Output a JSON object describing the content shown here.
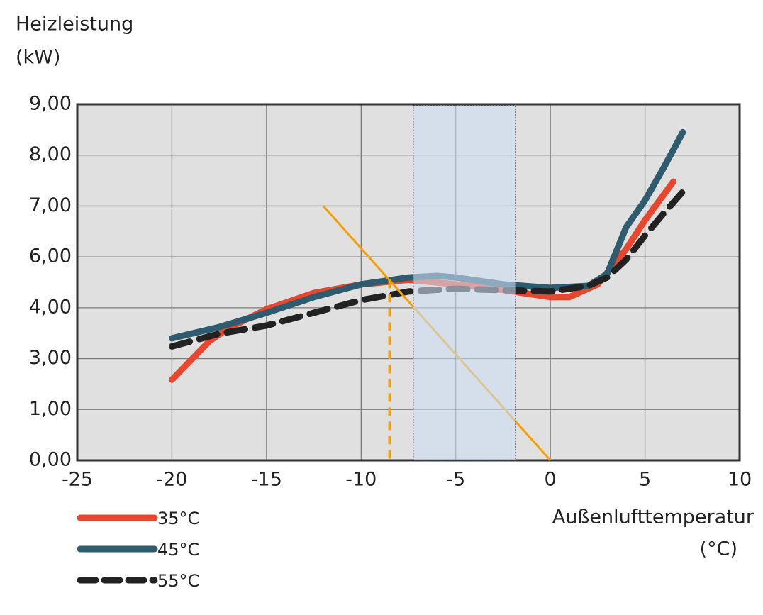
{
  "chart_data": {
    "type": "line",
    "y_label": [
      "Heizleistung",
      "(kW)"
    ],
    "x_label": [
      "Außenlufttemperatur",
      "(°C)"
    ],
    "xlim": [
      -25,
      10
    ],
    "xticks": [
      -25,
      -20,
      -15,
      -10,
      -5,
      0,
      5,
      10
    ],
    "ylim": [
      0,
      9
    ],
    "yticks": [
      {
        "value": 0,
        "label": "0,00"
      },
      {
        "value": 1,
        "label": "1,00"
      },
      {
        "value": 3,
        "label": "3,00"
      },
      {
        "value": 4,
        "label": "4,00"
      },
      {
        "value": 6,
        "label": "6,00"
      },
      {
        "value": 7,
        "label": "7,00"
      },
      {
        "value": 8,
        "label": "8,00"
      },
      {
        "value": 9,
        "label": "9,00"
      }
    ],
    "grid": true,
    "series": [
      {
        "name": "35°C",
        "color": "#e8472f",
        "dashed": false,
        "x": [
          -20,
          -18,
          -17,
          -15,
          -12.5,
          -10,
          -7.5,
          -5,
          -2.5,
          0,
          1,
          2.5,
          4,
          5,
          6.5
        ],
        "values": [
          2.17,
          3.35,
          3.6,
          3.97,
          4.58,
          4.92,
          5.1,
          4.92,
          4.7,
          4.42,
          4.42,
          4.92,
          6.15,
          6.72,
          7.48
        ]
      },
      {
        "name": "45°C",
        "color": "#2e5b6e",
        "dashed": false,
        "x": [
          -20,
          -17.5,
          -15,
          -12.5,
          -10,
          -7.5,
          -6,
          -5,
          -2.5,
          0,
          2,
          3,
          4,
          5,
          6,
          7
        ],
        "values": [
          3.4,
          3.62,
          3.9,
          4.42,
          4.92,
          5.19,
          5.25,
          5.19,
          4.92,
          4.78,
          4.86,
          5.33,
          6.58,
          7.11,
          7.76,
          8.45
        ]
      },
      {
        "name": "55°C",
        "color": "#222222",
        "dashed": true,
        "x": [
          -20,
          -17.5,
          -15,
          -12.5,
          -10,
          -7.5,
          -5,
          -2.5,
          0,
          2,
          3,
          4,
          5,
          6,
          7
        ],
        "values": [
          3.24,
          3.49,
          3.65,
          3.9,
          4.3,
          4.64,
          4.75,
          4.69,
          4.64,
          4.86,
          5.19,
          5.89,
          6.42,
          6.86,
          7.28
        ]
      }
    ],
    "reference_line": {
      "color": "#f5a000",
      "x": [
        -12,
        0
      ],
      "values": [
        7,
        0
      ]
    },
    "reference_drop": {
      "color": "#f5a000",
      "x": -8.5,
      "value": 5.1
    },
    "band": {
      "x": [
        -7.24,
        -1.85
      ]
    }
  }
}
